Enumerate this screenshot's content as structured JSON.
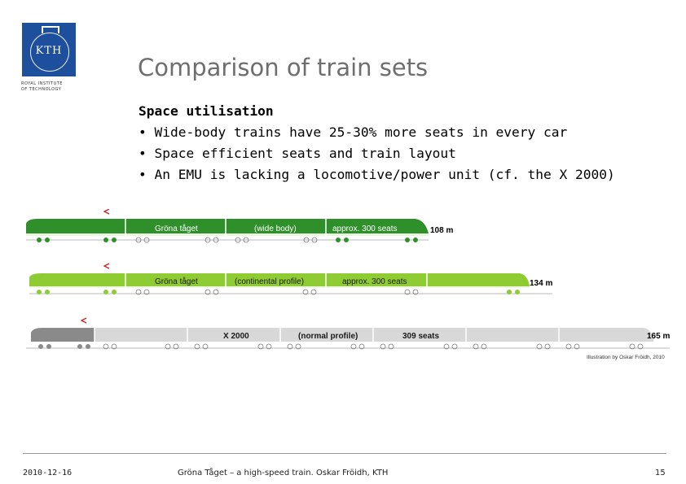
{
  "logo": {
    "text": "KTH",
    "caption_line1": "ROYAL INSTITUTE",
    "caption_line2": "OF TECHNOLOGY"
  },
  "slide": {
    "title": "Comparison of train sets",
    "heading": "Space utilisation",
    "bullets": [
      "• Wide-body trains have 25-30% more seats in every car",
      "• Space efficient seats and train layout",
      "• An EMU is lacking a locomotive/power unit (cf. the X 2000)"
    ]
  },
  "trains": [
    {
      "labels": [
        "Gröna tåget",
        "(wide body)",
        "approx. 300 seats"
      ],
      "length": "108 m",
      "car_color": "#2f8f2a",
      "stripe_color": "#ffffff"
    },
    {
      "labels": [
        "Gröna tåget",
        "(continental profile)",
        "approx. 300 seats"
      ],
      "length": "134 m",
      "car_color": "#8fcc33",
      "stripe_color": "#ffffff"
    },
    {
      "labels": [
        "X 2000",
        "(normal profile)",
        "309 seats"
      ],
      "length": "165 m",
      "car_color": "#d8d8d8",
      "loco_color": "#8a8a8a"
    }
  ],
  "illustration_credit": "Illustration by Oskar Fröidh, 2010",
  "footer": {
    "date": "2010-12-16",
    "center": "Gröna Tåget – a high-speed train. Oskar Fröidh, KTH",
    "page": "15"
  }
}
